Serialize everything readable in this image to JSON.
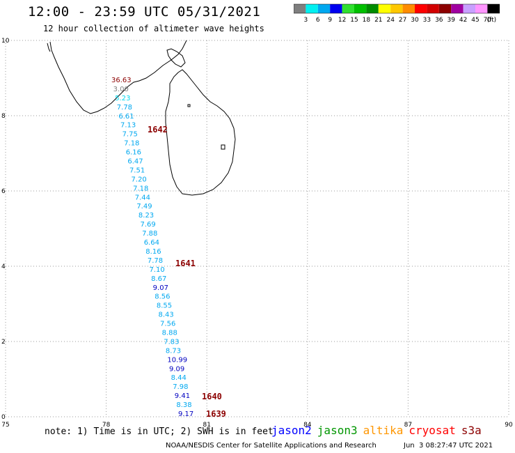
{
  "header": {
    "title": "12:00 - 23:59 UTC 05/31/2021",
    "subtitle": "12 hour collection of altimeter wave heights"
  },
  "colorbar": {
    "labels": [
      "3",
      "6",
      "9",
      "12",
      "15",
      "18",
      "21",
      "24",
      "27",
      "30",
      "33",
      "36",
      "39",
      "42",
      "45",
      "70"
    ],
    "unit": "(ft)",
    "colors": [
      "#7f7f7f",
      "#00f0f0",
      "#00a8f0",
      "#0000f0",
      "#30e030",
      "#00c000",
      "#008c00",
      "#ffff00",
      "#ffc800",
      "#ff8c00",
      "#ff0000",
      "#d20000",
      "#8c0000",
      "#a000a0",
      "#c8a0ff",
      "#ff96ff",
      "#000000"
    ]
  },
  "map": {
    "lon_ticks": [
      "75",
      "78",
      "81",
      "84",
      "87",
      "90"
    ],
    "lat_ticks": [
      "0",
      "2",
      "4",
      "6",
      "8",
      "10"
    ],
    "lon_range": [
      75,
      90
    ],
    "lat_range": [
      0,
      10
    ],
    "grid": "dotted"
  },
  "observations": [
    {
      "v": "36.63",
      "c": "#8c0000"
    },
    {
      "v": "3.00",
      "c": "#7f7f7f"
    },
    {
      "v": "5.23",
      "c": "#00d8f0"
    },
    {
      "v": "7.78",
      "c": "#00a8f0"
    },
    {
      "v": "6.61",
      "c": "#00a8f0"
    },
    {
      "v": "7.13",
      "c": "#00a8f0"
    },
    {
      "v": "7.75",
      "c": "#00a8f0"
    },
    {
      "v": "7.18",
      "c": "#00a8f0"
    },
    {
      "v": "6.16",
      "c": "#00a8f0"
    },
    {
      "v": "6.47",
      "c": "#00a8f0"
    },
    {
      "v": "7.51",
      "c": "#00a8f0"
    },
    {
      "v": "7.20",
      "c": "#00a8f0"
    },
    {
      "v": "7.18",
      "c": "#00a8f0"
    },
    {
      "v": "7.44",
      "c": "#00a8f0"
    },
    {
      "v": "7.49",
      "c": "#00a8f0"
    },
    {
      "v": "8.23",
      "c": "#00a8f0"
    },
    {
      "v": "7.69",
      "c": "#00a8f0"
    },
    {
      "v": "7.88",
      "c": "#00a8f0"
    },
    {
      "v": "6.64",
      "c": "#00a8f0"
    },
    {
      "v": "8.16",
      "c": "#00a8f0"
    },
    {
      "v": "7.78",
      "c": "#00a8f0"
    },
    {
      "v": "7.10",
      "c": "#00a8f0"
    },
    {
      "v": "8.67",
      "c": "#00a8f0"
    },
    {
      "v": "9.07",
      "c": "#0000c0"
    },
    {
      "v": "8.56",
      "c": "#00a8f0"
    },
    {
      "v": "8.55",
      "c": "#00a8f0"
    },
    {
      "v": "8.43",
      "c": "#00a8f0"
    },
    {
      "v": "7.56",
      "c": "#00a8f0"
    },
    {
      "v": "8.88",
      "c": "#00a8f0"
    },
    {
      "v": "7.83",
      "c": "#00a8f0"
    },
    {
      "v": "8.73",
      "c": "#00a8f0"
    },
    {
      "v": "10.99",
      "c": "#0000c0"
    },
    {
      "v": "9.09",
      "c": "#0000c0"
    },
    {
      "v": "8.44",
      "c": "#00a8f0"
    },
    {
      "v": "7.98",
      "c": "#00a8f0"
    },
    {
      "v": "9.41",
      "c": "#0000c0"
    },
    {
      "v": "8.38",
      "c": "#00a8f0"
    },
    {
      "v": "9.17",
      "c": "#0000c0"
    }
  ],
  "time_labels": [
    "1642",
    "1641",
    "1640",
    "1639"
  ],
  "time_label_color": "#8c0000",
  "footer": {
    "note": "note: 1) Time is in UTC; 2) SWH is in feet",
    "satellites": [
      {
        "name": "jason2",
        "color": "#0000ff"
      },
      {
        "name": "jason3",
        "color": "#009600"
      },
      {
        "name": "altika",
        "color": "#ff9600"
      },
      {
        "name": "cryosat",
        "color": "#ff0000"
      },
      {
        "name": "s3a",
        "color": "#8c0000"
      }
    ],
    "credit": "NOAA/NESDIS Center for Satellite Applications and Research",
    "timestamp": "Jun  3 08:27:47 UTC 2021"
  }
}
